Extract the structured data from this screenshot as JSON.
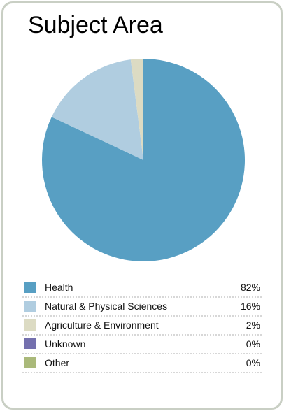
{
  "chart_data": {
    "type": "pie",
    "title": "Subject Area",
    "categories": [
      "Health",
      "Natural & Physical Sciences",
      "Agriculture & Environment",
      "Unknown",
      "Other"
    ],
    "values": [
      82,
      16,
      2,
      0,
      0
    ],
    "value_labels": [
      "82%",
      "16%",
      "2%",
      "0%",
      "0%"
    ],
    "colors": [
      "#589fc3",
      "#b0cde0",
      "#dcdbc3",
      "#7470ae",
      "#aab97a"
    ],
    "legend": "bottom"
  }
}
